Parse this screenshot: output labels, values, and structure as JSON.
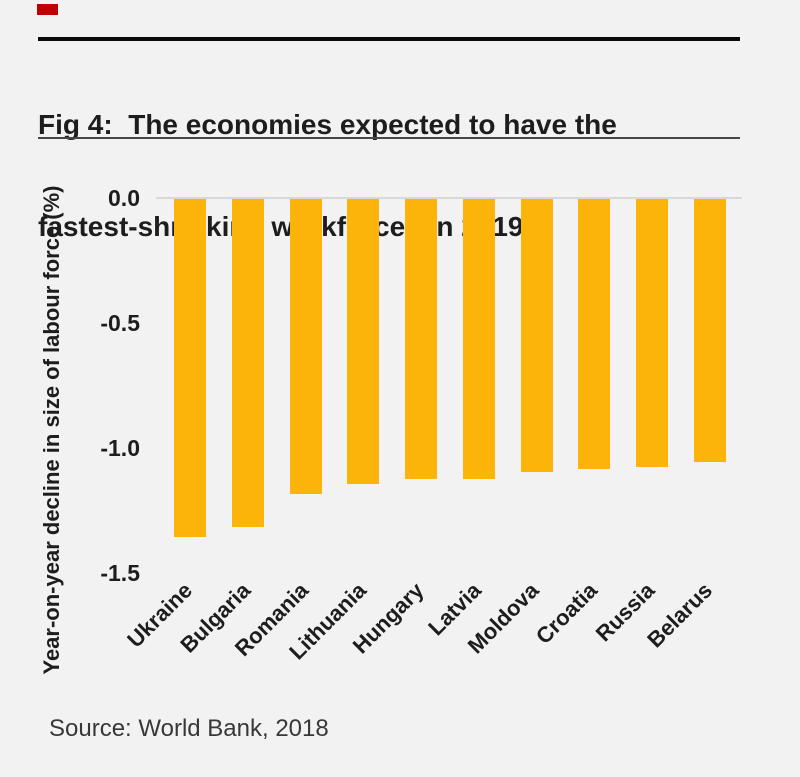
{
  "brand": {
    "tab_color": "#c00000"
  },
  "header": {
    "title_line1": "Fig 4:  The economies expected to have the",
    "title_line2": "fastest-shrinking workforces in 2019"
  },
  "chart_data": {
    "type": "bar",
    "title": "Fig 4: The economies expected to have the fastest-shrinking workforces in 2019",
    "categories": [
      "Ukraine",
      "Bulgaria",
      "Romania",
      "Lithuania",
      "Hungary",
      "Latvia",
      "Moldova",
      "Croatia",
      "Russia",
      "Belarus"
    ],
    "values": [
      -1.35,
      -1.31,
      -1.18,
      -1.14,
      -1.12,
      -1.12,
      -1.09,
      -1.08,
      -1.07,
      -1.05
    ],
    "xlabel": "",
    "ylabel": "Year-on-year decline in size of labour force (%)",
    "yticks": [
      0.0,
      -0.5,
      -1.0,
      -1.5
    ],
    "ytick_labels": [
      "0.0",
      "-0.5",
      "-1.0",
      "-1.5"
    ],
    "ylim": [
      -1.5,
      0
    ],
    "bar_color": "#FDB40A",
    "gridline_color": "#d8d8d8",
    "grid": "zero-line-only",
    "legend": "none",
    "orientation": "vertical"
  },
  "footer": {
    "source_text": "Source: World Bank, 2018"
  }
}
